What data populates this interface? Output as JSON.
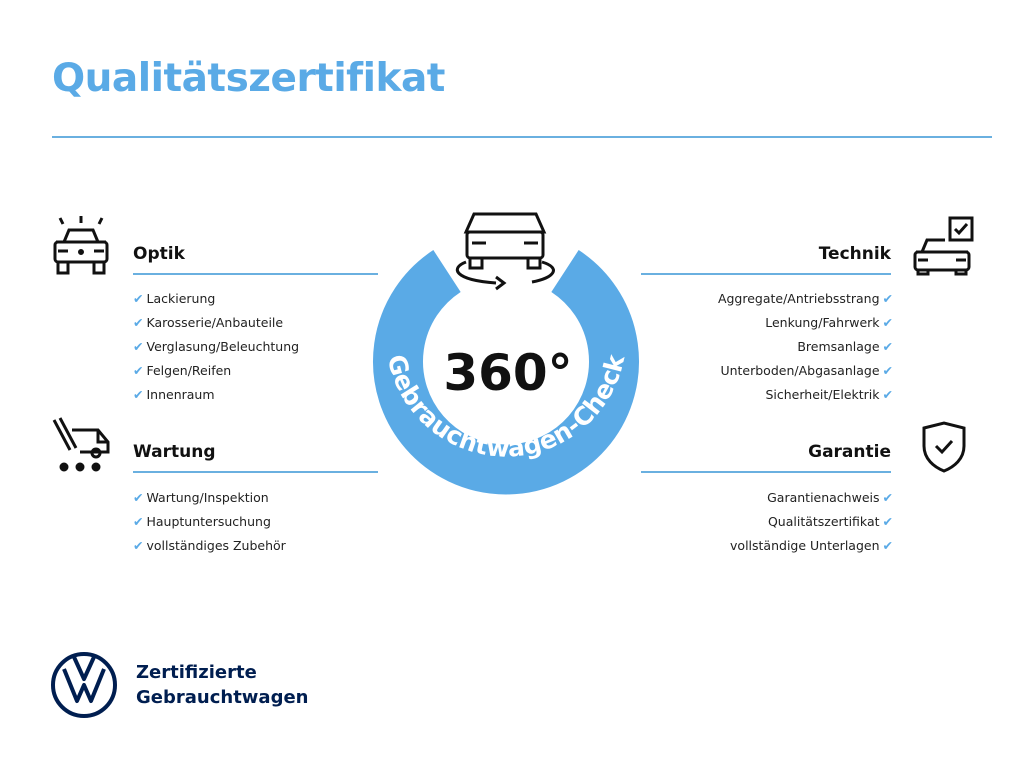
{
  "title": "Qualitätszertifikat",
  "center": {
    "degrees": "360°",
    "label": "Gebrauchtwagen-Check"
  },
  "sections": {
    "optik": {
      "title": "Optik",
      "items": [
        "Lackierung",
        "Karosserie/Anbauteile",
        "Verglasung/Beleuchtung",
        "Felgen/Reifen",
        "Innenraum"
      ]
    },
    "wartung": {
      "title": "Wartung",
      "items": [
        "Wartung/Inspektion",
        "Hauptuntersuchung",
        "vollständiges Zubehör"
      ]
    },
    "technik": {
      "title": "Technik",
      "items": [
        "Aggregate/Antriebsstrang",
        "Lenkung/Fahrwerk",
        "Bremsanlage",
        "Unterboden/Abgasanlage",
        "Sicherheit/Elektrik"
      ]
    },
    "garantie": {
      "title": "Garantie",
      "items": [
        "Garantienachweis",
        "Qualitätszertifikat",
        "vollständige Unterlagen"
      ]
    }
  },
  "footer": {
    "line1": "Zertifizierte",
    "line2": "Gebrauchtwagen"
  },
  "colors": {
    "accent": "#5aaae6",
    "brand": "#001e50"
  }
}
